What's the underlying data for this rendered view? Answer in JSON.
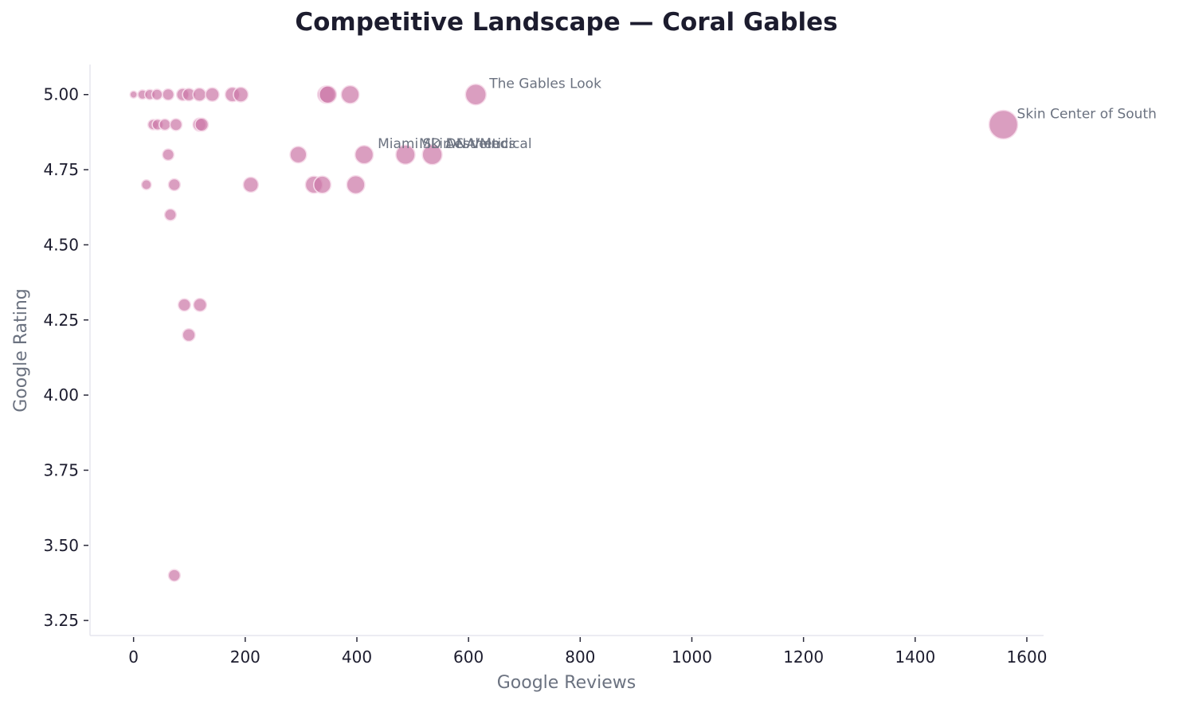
{
  "chart_data": {
    "type": "scatter",
    "title": "Competitive Landscape — Coral Gables",
    "xlabel": "Google Reviews",
    "ylabel": "Google Rating",
    "xlim": [
      -78,
      1630
    ],
    "ylim": [
      3.2,
      5.1
    ],
    "xticks": [
      0,
      200,
      400,
      600,
      800,
      1000,
      1200,
      1400,
      1600
    ],
    "xtick_labels": [
      "0",
      "200",
      "400",
      "600",
      "800",
      "1000",
      "1200",
      "1400",
      "1600"
    ],
    "yticks": [
      3.25,
      3.5,
      3.75,
      4.0,
      4.25,
      4.5,
      4.75,
      5.0
    ],
    "ytick_labels": [
      "3.25",
      "3.50",
      "3.75",
      "4.00",
      "4.25",
      "4.50",
      "4.75",
      "5.00"
    ],
    "grid": false,
    "bubble_size_encodes": "Google Reviews",
    "marker_color": "#cc79a7",
    "points": [
      {
        "x": 0,
        "y": 5.0
      },
      {
        "x": 16,
        "y": 5.0
      },
      {
        "x": 29,
        "y": 5.0
      },
      {
        "x": 42,
        "y": 5.0
      },
      {
        "x": 62,
        "y": 5.0
      },
      {
        "x": 88,
        "y": 5.0
      },
      {
        "x": 99,
        "y": 5.0
      },
      {
        "x": 118,
        "y": 5.0
      },
      {
        "x": 141,
        "y": 5.0
      },
      {
        "x": 177,
        "y": 5.0
      },
      {
        "x": 192,
        "y": 5.0
      },
      {
        "x": 345,
        "y": 5.0
      },
      {
        "x": 348,
        "y": 5.0
      },
      {
        "x": 388,
        "y": 5.0
      },
      {
        "x": 613,
        "y": 5.0,
        "label": "The Gables Look"
      },
      {
        "x": 35,
        "y": 4.9
      },
      {
        "x": 43,
        "y": 4.9
      },
      {
        "x": 56,
        "y": 4.9
      },
      {
        "x": 76,
        "y": 4.9
      },
      {
        "x": 118,
        "y": 4.9
      },
      {
        "x": 122,
        "y": 4.9
      },
      {
        "x": 1558,
        "y": 4.9,
        "label": "Skin Center of South"
      },
      {
        "x": 62,
        "y": 4.8
      },
      {
        "x": 295,
        "y": 4.8
      },
      {
        "x": 413,
        "y": 4.8,
        "label": "Miami Skin & Vein"
      },
      {
        "x": 487,
        "y": 4.8,
        "label": "MD Aesthetics"
      },
      {
        "x": 535,
        "y": 4.8,
        "label": "DNA Medical"
      },
      {
        "x": 23,
        "y": 4.7
      },
      {
        "x": 73,
        "y": 4.7
      },
      {
        "x": 210,
        "y": 4.7
      },
      {
        "x": 323,
        "y": 4.7
      },
      {
        "x": 338,
        "y": 4.7
      },
      {
        "x": 398,
        "y": 4.7
      },
      {
        "x": 66,
        "y": 4.6
      },
      {
        "x": 91,
        "y": 4.3
      },
      {
        "x": 119,
        "y": 4.3
      },
      {
        "x": 99,
        "y": 4.2
      },
      {
        "x": 73,
        "y": 3.4
      }
    ]
  }
}
